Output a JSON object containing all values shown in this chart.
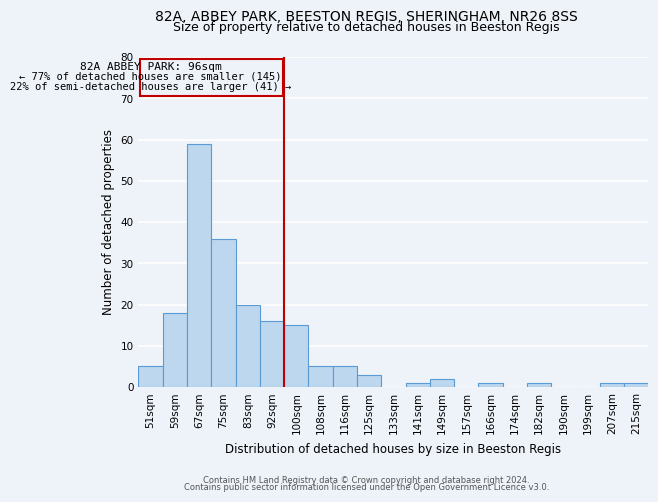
{
  "title1": "82A, ABBEY PARK, BEESTON REGIS, SHERINGHAM, NR26 8SS",
  "title2": "Size of property relative to detached houses in Beeston Regis",
  "xlabel": "Distribution of detached houses by size in Beeston Regis",
  "ylabel": "Number of detached properties",
  "categories": [
    "51sqm",
    "59sqm",
    "67sqm",
    "75sqm",
    "83sqm",
    "92sqm",
    "100sqm",
    "108sqm",
    "116sqm",
    "125sqm",
    "133sqm",
    "141sqm",
    "149sqm",
    "157sqm",
    "166sqm",
    "174sqm",
    "182sqm",
    "190sqm",
    "199sqm",
    "207sqm",
    "215sqm"
  ],
  "values": [
    5,
    18,
    59,
    36,
    20,
    16,
    15,
    5,
    5,
    3,
    0,
    1,
    2,
    0,
    1,
    0,
    1,
    0,
    0,
    1,
    1
  ],
  "bar_color": "#bdd7ee",
  "bar_edge_color": "#5b9bd5",
  "vline_x": 5.5,
  "vline_color": "#c00000",
  "annotation_text_line1": "82A ABBEY PARK: 96sqm",
  "annotation_text_line2": "← 77% of detached houses are smaller (145)",
  "annotation_text_line3": "22% of semi-detached houses are larger (41) →",
  "annotation_box_color": "#c00000",
  "ylim": [
    0,
    80
  ],
  "yticks": [
    0,
    10,
    20,
    30,
    40,
    50,
    60,
    70,
    80
  ],
  "footer1": "Contains HM Land Registry data © Crown copyright and database right 2024.",
  "footer2": "Contains public sector information licensed under the Open Government Licence v3.0.",
  "bg_color": "#eef2f9",
  "grid_color": "#ffffff",
  "title_fontsize": 10,
  "subtitle_fontsize": 9
}
